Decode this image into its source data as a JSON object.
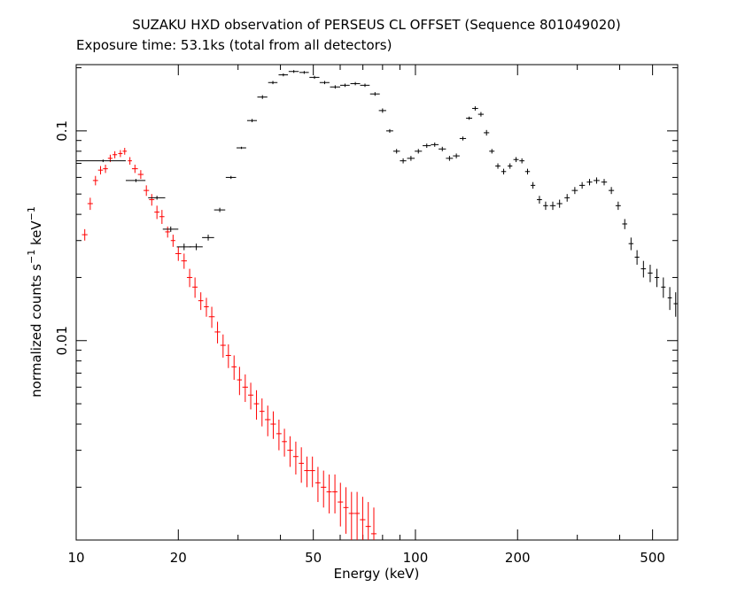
{
  "chart_data": {
    "type": "scatter",
    "title": "SUZAKU HXD observation of PERSEUS CL OFFSET (Sequence 801049020)",
    "subtitle": "Exposure time: 53.1ks (total from all detectors)",
    "xlabel": "Energy (keV)",
    "ylabel": [
      "normalized counts s",
      "−1",
      " keV",
      "−1"
    ],
    "xlog": true,
    "ylog": true,
    "xlim": [
      10,
      593
    ],
    "ylim": [
      0.00112,
      0.207
    ],
    "xticks": [
      10,
      20,
      50,
      100,
      200,
      500
    ],
    "xminorticks": [
      30,
      40,
      60,
      70,
      80,
      90,
      300,
      400
    ],
    "yticks": [
      0.01,
      0.1
    ],
    "yminorticks": [
      0.002,
      0.003,
      0.004,
      0.005,
      0.006,
      0.007,
      0.008,
      0.009,
      0.02,
      0.03,
      0.04,
      0.05,
      0.06,
      0.07,
      0.08,
      0.09,
      0.2
    ],
    "series": [
      {
        "color": "#ff0000",
        "x": [
          10.6,
          11.0,
          11.4,
          11.8,
          12.2,
          12.6,
          13.0,
          13.5,
          13.9,
          14.4,
          14.9,
          15.5,
          16.1,
          16.7,
          17.3,
          17.9,
          18.6,
          19.3,
          20.0,
          20.8,
          21.6,
          22.4,
          23.3,
          24.2,
          25.1,
          26.1,
          27.1,
          28.1,
          29.2,
          30.3,
          31.5,
          32.7,
          34.0,
          35.3,
          36.7,
          38.1,
          39.6,
          41.1,
          42.7,
          44.4,
          46.1,
          47.9,
          49.7,
          51.6,
          53.6,
          55.7,
          57.9,
          60.1,
          62.4,
          64.8,
          67.3,
          69.9,
          72.6,
          75.4
        ],
        "values": [
          0.032,
          0.045,
          0.058,
          0.065,
          0.066,
          0.074,
          0.077,
          0.078,
          0.08,
          0.072,
          0.066,
          0.062,
          0.052,
          0.047,
          0.041,
          0.039,
          0.033,
          0.03,
          0.026,
          0.024,
          0.02,
          0.018,
          0.0155,
          0.0145,
          0.013,
          0.011,
          0.0095,
          0.0085,
          0.0075,
          0.0065,
          0.006,
          0.0055,
          0.005,
          0.0046,
          0.0042,
          0.004,
          0.0036,
          0.0033,
          0.003,
          0.0028,
          0.0026,
          0.0024,
          0.0024,
          0.0021,
          0.002,
          0.0019,
          0.0019,
          0.0017,
          0.0016,
          0.0015,
          0.0015,
          0.0014,
          0.0013,
          0.0012
        ],
        "xerr": [
          0.2,
          0.2,
          0.2,
          0.2,
          0.2,
          0.2,
          0.2,
          0.2,
          0.2,
          0.2,
          0.3,
          0.3,
          0.3,
          0.3,
          0.3,
          0.3,
          0.3,
          0.3,
          0.4,
          0.4,
          0.4,
          0.4,
          0.4,
          0.4,
          0.5,
          0.5,
          0.5,
          0.5,
          0.5,
          0.5,
          0.6,
          0.6,
          0.6,
          0.6,
          0.7,
          0.7,
          0.7,
          0.7,
          0.8,
          0.8,
          0.8,
          0.9,
          0.9,
          0.9,
          1.0,
          1.0,
          1.0,
          1.1,
          1.1,
          1.2,
          1.2,
          1.3,
          1.3,
          1.4
        ],
        "yerr": [
          0.002,
          0.003,
          0.003,
          0.003,
          0.003,
          0.003,
          0.003,
          0.003,
          0.003,
          0.003,
          0.003,
          0.003,
          0.003,
          0.003,
          0.003,
          0.003,
          0.002,
          0.002,
          0.002,
          0.002,
          0.002,
          0.002,
          0.0015,
          0.0015,
          0.0015,
          0.0013,
          0.0012,
          0.0011,
          0.001,
          0.001,
          0.0009,
          0.0008,
          0.0008,
          0.0007,
          0.0007,
          0.0006,
          0.0006,
          0.0005,
          0.0005,
          0.0005,
          0.0005,
          0.0004,
          0.0004,
          0.0004,
          0.0004,
          0.0004,
          0.0004,
          0.0004,
          0.0004,
          0.0004,
          0.0004,
          0.0004,
          0.0004,
          0.0004
        ]
      },
      {
        "color": "#000000",
        "x": [
          12,
          15,
          17.3,
          19,
          20.8,
          22.6,
          24.5,
          26.5,
          28.6,
          30.7,
          33,
          35.4,
          38,
          40.8,
          43.8,
          47,
          50.4,
          54,
          58,
          62,
          66.5,
          71,
          76,
          80,
          84,
          88,
          92,
          97,
          102,
          108,
          114,
          120,
          126,
          132,
          138,
          144,
          150,
          156,
          162,
          168,
          175,
          182,
          190,
          198,
          206,
          214,
          222,
          232,
          242,
          254,
          266,
          280,
          295,
          310,
          326,
          342,
          360,
          378,
          396,
          414,
          432,
          450,
          470,
          492,
          515,
          538,
          562,
          585
        ],
        "values": [
          0.072,
          0.058,
          0.048,
          0.034,
          0.028,
          0.028,
          0.031,
          0.042,
          0.06,
          0.083,
          0.112,
          0.145,
          0.17,
          0.185,
          0.192,
          0.19,
          0.18,
          0.17,
          0.162,
          0.165,
          0.168,
          0.165,
          0.15,
          0.125,
          0.1,
          0.08,
          0.072,
          0.074,
          0.08,
          0.085,
          0.086,
          0.082,
          0.074,
          0.076,
          0.092,
          0.115,
          0.128,
          0.12,
          0.098,
          0.08,
          0.068,
          0.064,
          0.068,
          0.073,
          0.072,
          0.064,
          0.055,
          0.047,
          0.044,
          0.044,
          0.045,
          0.048,
          0.052,
          0.055,
          0.057,
          0.058,
          0.057,
          0.052,
          0.044,
          0.036,
          0.029,
          0.025,
          0.022,
          0.021,
          0.02,
          0.018,
          0.016,
          0.015
        ],
        "xerr": [
          2,
          1,
          1,
          1,
          1,
          1,
          1,
          1,
          1,
          1,
          1.1,
          1.2,
          1.2,
          1.3,
          1.5,
          1.5,
          1.7,
          1.8,
          2,
          2,
          2.2,
          2.3,
          2.5,
          2,
          2,
          2,
          2,
          2.5,
          2.5,
          3,
          3,
          3,
          3,
          3,
          3,
          3,
          3,
          3,
          3,
          3,
          3,
          3,
          3,
          3.5,
          3.5,
          3.5,
          3.5,
          4,
          4,
          5,
          5,
          5,
          6,
          6,
          6,
          7,
          7,
          7,
          7,
          7,
          7,
          7,
          8,
          8,
          8,
          8,
          8,
          8
        ],
        "yerr": [
          0.001,
          0.001,
          0.001,
          0.001,
          0.001,
          0.001,
          0.001,
          0.001,
          0.001,
          0.001,
          0.002,
          0.003,
          0.003,
          0.003,
          0.003,
          0.003,
          0.003,
          0.003,
          0.003,
          0.003,
          0.003,
          0.003,
          0.003,
          0.003,
          0.002,
          0.002,
          0.002,
          0.002,
          0.002,
          0.002,
          0.002,
          0.002,
          0.002,
          0.002,
          0.002,
          0.002,
          0.003,
          0.003,
          0.003,
          0.002,
          0.002,
          0.002,
          0.002,
          0.002,
          0.002,
          0.002,
          0.002,
          0.002,
          0.002,
          0.002,
          0.002,
          0.002,
          0.002,
          0.002,
          0.002,
          0.002,
          0.002,
          0.002,
          0.002,
          0.002,
          0.002,
          0.002,
          0.002,
          0.002,
          0.002,
          0.002,
          0.002,
          0.002
        ]
      }
    ]
  }
}
